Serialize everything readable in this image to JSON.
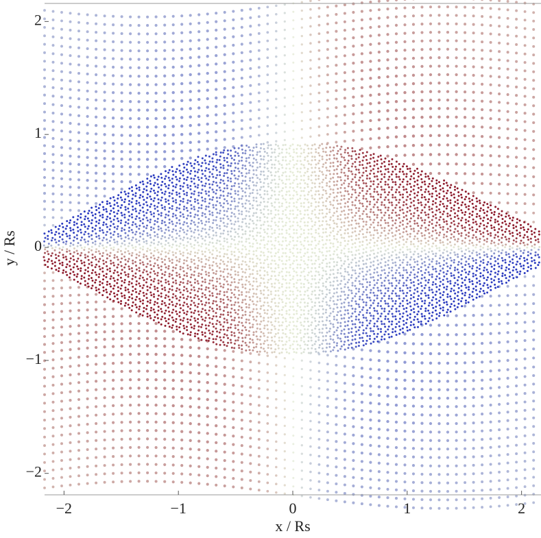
{
  "chart_data": {
    "type": "scatter",
    "xlabel": "x / Rs",
    "ylabel": "y / Rs",
    "xlim": [
      -2.17,
      2.17
    ],
    "ylim": [
      -2.19,
      2.16
    ],
    "xticks": [
      {
        "value": -2,
        "label": "−2"
      },
      {
        "value": -1,
        "label": "−1"
      },
      0,
      1,
      2
    ],
    "yticks": [
      {
        "value": -2,
        "label": "−2"
      },
      {
        "value": -1,
        "label": "−1"
      },
      0,
      1,
      2
    ],
    "colormap": [
      "#2b3bc0",
      "#e6ecd8",
      "#8e1b2c"
    ]
  }
}
